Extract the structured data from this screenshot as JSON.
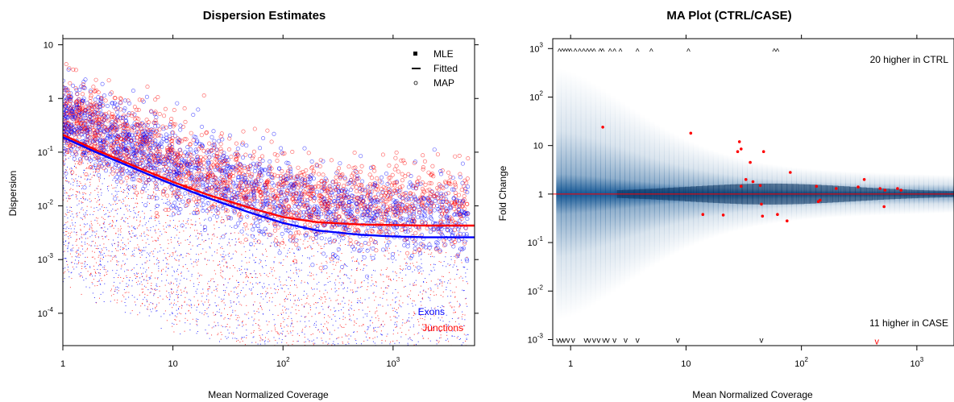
{
  "chart_data": [
    {
      "type": "scatter",
      "title": "Dispersion Estimates",
      "xlabel": "Mean Normalized Coverage",
      "ylabel": "Dispersion",
      "x_scale": "log10",
      "y_scale": "log10",
      "xlim": [
        1,
        5500
      ],
      "ylim": [
        2.5e-05,
        13
      ],
      "x_ticks": [
        1,
        10,
        100,
        1000
      ],
      "x_tick_labels": [
        {
          "base": "1",
          "exp": ""
        },
        {
          "base": "10",
          "exp": ""
        },
        {
          "base": "10",
          "exp": "2"
        },
        {
          "base": "10",
          "exp": "3"
        }
      ],
      "y_ticks": [
        10,
        1,
        0.1,
        0.01,
        0.001,
        0.0001
      ],
      "y_tick_labels": [
        {
          "base": "10",
          "exp": ""
        },
        {
          "base": "1",
          "exp": ""
        },
        {
          "base": "10",
          "exp": "-1"
        },
        {
          "base": "10",
          "exp": "-2"
        },
        {
          "base": "10",
          "exp": "-3"
        },
        {
          "base": "10",
          "exp": "-4"
        }
      ],
      "legend": {
        "position": "top-right",
        "items": [
          {
            "label": "MLE",
            "symbol": "square"
          },
          {
            "label": "Fitted",
            "symbol": "line"
          },
          {
            "label": "MAP",
            "symbol": "circle"
          }
        ]
      },
      "group_labels": [
        {
          "label": "Exons",
          "color": "#0000ff"
        },
        {
          "label": "Junctions",
          "color": "#ff0000"
        }
      ],
      "series": [
        {
          "name": "Exons",
          "color": "#0000ff",
          "fitted": {
            "x": [
              1,
              2,
              5,
              10,
              20,
              50,
              100,
              200,
              500,
              1000,
              2000,
              5000
            ],
            "y": [
              0.19,
              0.1,
              0.045,
              0.025,
              0.0145,
              0.0075,
              0.0048,
              0.0035,
              0.0029,
              0.0027,
              0.0026,
              0.0026
            ]
          }
        },
        {
          "name": "Junctions",
          "color": "#ff0000",
          "fitted": {
            "x": [
              1,
              2,
              5,
              10,
              20,
              50,
              100,
              200,
              500,
              1000,
              2000,
              5000
            ],
            "y": [
              0.21,
              0.11,
              0.05,
              0.028,
              0.0165,
              0.0092,
              0.0062,
              0.005,
              0.0045,
              0.0044,
              0.0043,
              0.0043
            ]
          }
        }
      ],
      "point_cloud": {
        "map_center": "fitted x 2.5",
        "mle_range": "1e-5 to fitted",
        "x_range": [
          1,
          5000
        ]
      },
      "grid": false
    },
    {
      "type": "scatter",
      "title": "MA Plot (CTRL/CASE)",
      "xlabel": "Mean Normalized Coverage",
      "ylabel": "Fold Change",
      "x_scale": "log10",
      "y_scale": "log10",
      "xlim": [
        0.7,
        5000
      ],
      "ylim": [
        0.00075,
        1600
      ],
      "x_ticks": [
        1,
        10,
        100,
        1000
      ],
      "x_tick_labels": [
        {
          "base": "1",
          "exp": ""
        },
        {
          "base": "10",
          "exp": ""
        },
        {
          "base": "10",
          "exp": "2"
        },
        {
          "base": "10",
          "exp": "3"
        }
      ],
      "y_ticks": [
        1000,
        100,
        10,
        1,
        0.1,
        0.01,
        0.001
      ],
      "y_tick_labels": [
        {
          "base": "10",
          "exp": "3"
        },
        {
          "base": "10",
          "exp": "2"
        },
        {
          "base": "10",
          "exp": ""
        },
        {
          "base": "1",
          "exp": ""
        },
        {
          "base": "10",
          "exp": "-1"
        },
        {
          "base": "10",
          "exp": "-2"
        },
        {
          "base": "10",
          "exp": "-3"
        }
      ],
      "reference_line": {
        "y": 1,
        "color": "#ff0000"
      },
      "annotations": {
        "top": "20 higher in CTRL",
        "bottom": "11 higher in CASE"
      },
      "significant_points": {
        "color": "#ff0000",
        "x": [
          1.9,
          11,
          14,
          21,
          28,
          29,
          30,
          30,
          33,
          36,
          38,
          44,
          45,
          46,
          47,
          62,
          75,
          80,
          135,
          140,
          145,
          200,
          310,
          350,
          480,
          520,
          530,
          680,
          730
        ],
        "y": [
          24,
          18,
          0.38,
          0.37,
          7.5,
          12,
          8.5,
          1.45,
          2,
          4.5,
          1.8,
          1.5,
          0.62,
          0.35,
          7.5,
          0.38,
          0.28,
          2.8,
          1.45,
          0.7,
          0.75,
          1.3,
          1.4,
          2,
          1.3,
          0.55,
          1.2,
          1.3,
          1.2
        ]
      },
      "clipped_high": {
        "marker": "^",
        "x": [
          0.8,
          0.85,
          0.9,
          0.95,
          1.0,
          1.1,
          1.2,
          1.3,
          1.4,
          1.5,
          1.6,
          1.8,
          1.9,
          2.2,
          2.4,
          2.7,
          3.8,
          5.0,
          10.5,
          58,
          62
        ],
        "y": 1000
      },
      "clipped_low": {
        "marker": "v",
        "x": [
          0.78,
          0.83,
          0.88,
          0.95,
          1.05,
          1.35,
          1.45,
          1.6,
          1.75,
          1.95,
          2.1,
          2.4,
          3.0,
          3.8,
          8.5,
          45
        ],
        "y": 0.001,
        "highlight": {
          "x": 450,
          "color": "#ff0000"
        }
      },
      "density": {
        "center_y": 1,
        "x_range": [
          0.75,
          4500
        ]
      },
      "grid": false
    }
  ]
}
